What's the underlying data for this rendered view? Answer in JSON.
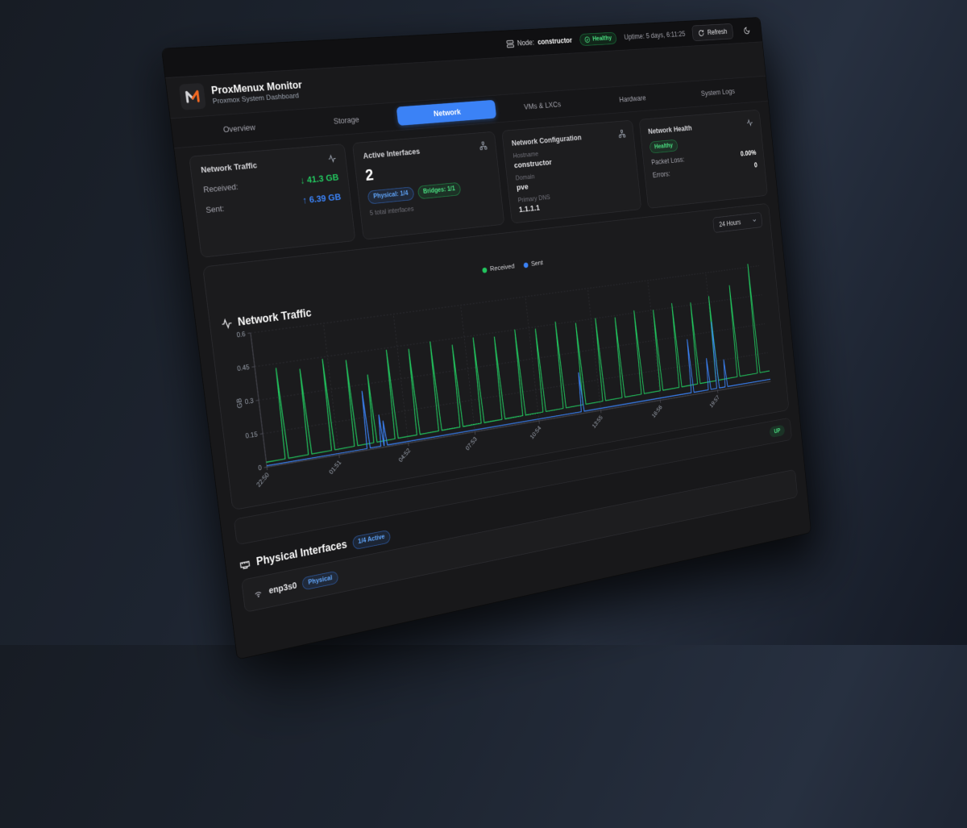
{
  "topbar": {
    "node_label": "Node:",
    "node_value": "constructor",
    "health_badge": "Healthy",
    "uptime": "Uptime: 5 days, 6:11:25",
    "refresh_label": "Refresh"
  },
  "header": {
    "title": "ProxMenux Monitor",
    "subtitle": "Proxmox System Dashboard"
  },
  "tabs": [
    {
      "label": "Overview",
      "active": false
    },
    {
      "label": "Storage",
      "active": false
    },
    {
      "label": "Network",
      "active": true
    },
    {
      "label": "VMs & LXCs",
      "active": false
    },
    {
      "label": "Hardware",
      "active": false
    },
    {
      "label": "System Logs",
      "active": false
    }
  ],
  "cards": {
    "traffic": {
      "title": "Network Traffic",
      "rows": [
        {
          "label": "Received:",
          "value": "↓ 41.3 GB"
        },
        {
          "label": "Sent:",
          "value": "↑ 6.39 GB"
        }
      ]
    },
    "interfaces": {
      "title": "Active Interfaces",
      "count": "2",
      "badges": [
        {
          "label": "Physical: 1/4"
        },
        {
          "label": "Bridges: 1/1"
        }
      ],
      "footnote": "5 total interfaces"
    },
    "config": {
      "title": "Network Configuration",
      "fields": [
        {
          "label": "Hostname",
          "value": "constructor"
        },
        {
          "label": "Domain",
          "value": "pve"
        },
        {
          "label": "Primary DNS",
          "value": "1.1.1.1"
        }
      ]
    },
    "health": {
      "title": "Network Health",
      "status": "Healthy",
      "rows": [
        {
          "label": "Packet Loss:",
          "value": "0.00%"
        },
        {
          "label": "Errors:",
          "value": "0"
        }
      ]
    }
  },
  "time_range": {
    "selected": "24 Hours"
  },
  "chart_section": {
    "title": "Network Traffic"
  },
  "status_row": {
    "badge": "UP"
  },
  "physical_interfaces": {
    "title": "Physical Interfaces",
    "active_badge": "1/4 Active",
    "rows": [
      {
        "name": "enp3s0",
        "badge": "Physical"
      }
    ]
  },
  "colors": {
    "accent_blue": "#3b82f6",
    "green": "#22c55e",
    "orange_logo": "#f26822"
  },
  "chart_data": {
    "type": "line",
    "title": "Network Traffic",
    "xlabel": "",
    "ylabel": "GB",
    "x_ticks": [
      "22:50",
      "01:51",
      "04:52",
      "07:53",
      "10:54",
      "13:55",
      "16:56",
      "19:57"
    ],
    "x_tick_hours": [
      0,
      3.017,
      6.033,
      9.05,
      12.067,
      15.083,
      18.1,
      21.117
    ],
    "x_range_hours": [
      0,
      24
    ],
    "ylim": [
      0,
      0.6
    ],
    "y_ticks": [
      0,
      0.15,
      0.3,
      0.45,
      0.6
    ],
    "grid": "dashed",
    "legend_position": "top-center",
    "series": [
      {
        "name": "Received",
        "color": "#22c55e",
        "baseline": [
          0.022,
          0.055
        ],
        "spikes": [
          [
            0.85,
            0.43
          ],
          [
            1.82,
            0.41
          ],
          [
            2.8,
            0.44
          ],
          [
            3.78,
            0.42
          ],
          [
            4.62,
            0.34
          ],
          [
            5.55,
            0.44
          ],
          [
            6.52,
            0.43
          ],
          [
            7.5,
            0.45
          ],
          [
            8.47,
            0.42
          ],
          [
            9.45,
            0.44
          ],
          [
            10.42,
            0.43
          ],
          [
            11.4,
            0.45
          ],
          [
            12.37,
            0.44
          ],
          [
            13.35,
            0.46
          ],
          [
            14.32,
            0.44
          ],
          [
            15.3,
            0.45
          ],
          [
            16.27,
            0.44
          ],
          [
            17.25,
            0.46
          ],
          [
            18.22,
            0.45
          ],
          [
            19.2,
            0.47
          ],
          [
            20.17,
            0.46
          ],
          [
            21.15,
            0.48
          ],
          [
            22.3,
            0.52
          ],
          [
            23.4,
            0.62
          ]
        ]
      },
      {
        "name": "Sent",
        "color": "#3b82f6",
        "baseline": [
          0.006,
          0.012
        ],
        "spikes": [
          [
            4.3,
            0.27
          ],
          [
            4.9,
            0.15
          ],
          [
            5.05,
            0.12
          ],
          [
            14.2,
            0.2
          ],
          [
            19.8,
            0.28
          ],
          [
            20.7,
            0.17
          ],
          [
            21.15,
            0.35
          ],
          [
            21.6,
            0.15
          ]
        ]
      }
    ]
  }
}
